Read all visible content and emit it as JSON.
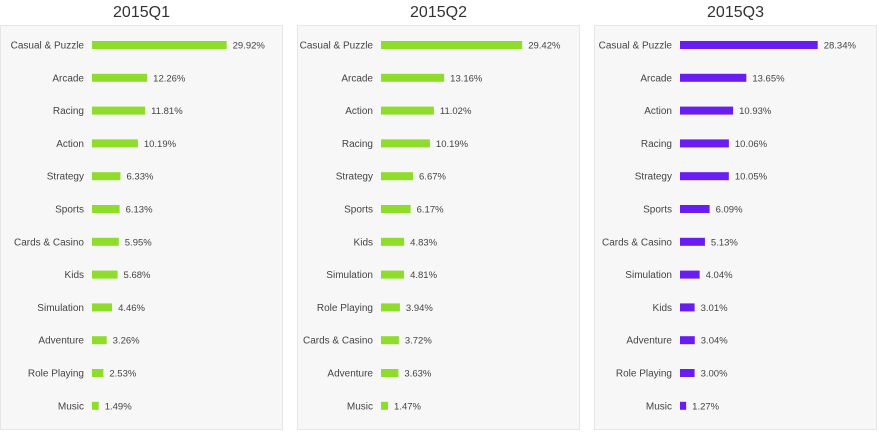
{
  "chart_data": [
    {
      "type": "bar",
      "title": "2015Q1",
      "color": "#8ddd2a",
      "categories": [
        "Casual & Puzzle",
        "Arcade",
        "Racing",
        "Action",
        "Strategy",
        "Sports",
        "Cards & Casino",
        "Kids",
        "Simulation",
        "Adventure",
        "Role Playing",
        "Music"
      ],
      "values": [
        29.92,
        12.26,
        11.81,
        10.19,
        6.33,
        6.13,
        5.95,
        5.68,
        4.46,
        3.26,
        2.53,
        1.49
      ],
      "labels": [
        "29.92%",
        "12.26%",
        "11.81%",
        "10.19%",
        "6.33%",
        "6.13%",
        "5.95%",
        "5.68%",
        "4.46%",
        "3.26%",
        "2.53%",
        "1.49%"
      ]
    },
    {
      "type": "bar",
      "title": "2015Q2",
      "color": "#8ddd2a",
      "categories": [
        "Casual & Puzzle",
        "Arcade",
        "Action",
        "Racing",
        "Strategy",
        "Sports",
        "Kids",
        "Simulation",
        "Role Playing",
        "Cards & Casino",
        "Adventure",
        "Music"
      ],
      "values": [
        29.42,
        13.16,
        11.02,
        10.19,
        6.67,
        6.17,
        4.83,
        4.81,
        3.94,
        3.72,
        3.63,
        1.47
      ],
      "labels": [
        "29.42%",
        "13.16%",
        "11.02%",
        "10.19%",
        "6.67%",
        "6.17%",
        "4.83%",
        "4.81%",
        "3.94%",
        "3.72%",
        "3.63%",
        "1.47%"
      ]
    },
    {
      "type": "bar",
      "title": "2015Q3",
      "color": "#6a1df2",
      "categories": [
        "Casual & Puzzle",
        "Arcade",
        "Action",
        "Racing",
        "Strategy",
        "Sports",
        "Cards & Casino",
        "Simulation",
        "Kids",
        "Adventure",
        "Role Playing",
        "Music"
      ],
      "values": [
        28.34,
        13.65,
        10.93,
        10.06,
        10.05,
        6.09,
        5.13,
        4.04,
        3.01,
        3.04,
        3.0,
        1.27
      ],
      "labels": [
        "28.34%",
        "13.65%",
        "10.93%",
        "10.06%",
        "10.05%",
        "6.09%",
        "5.13%",
        "4.04%",
        "3.01%",
        "3.04%",
        "3.00%",
        "1.27%"
      ]
    }
  ]
}
